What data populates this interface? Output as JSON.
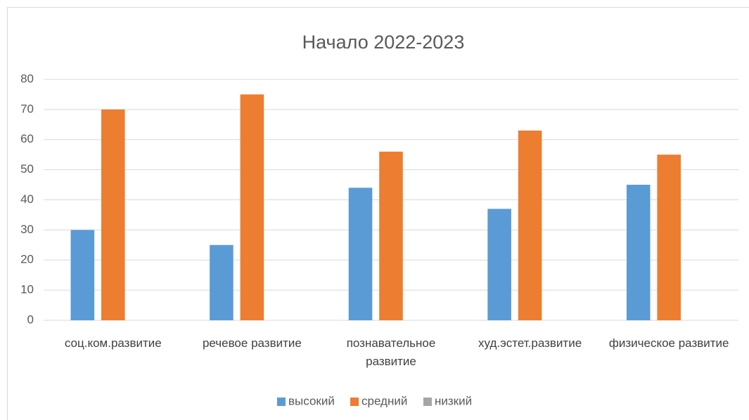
{
  "chart_data": {
    "type": "bar",
    "title": "Начало 2022-2023",
    "categories": [
      "соц.ком.развитие",
      "речевое развитие",
      "познавательное развитие",
      "худ.эстет.развитие",
      "физическое развитие"
    ],
    "series": [
      {
        "name": "высокий",
        "color": "#5b9bd5",
        "values": [
          30,
          25,
          44,
          37,
          45
        ]
      },
      {
        "name": "средний",
        "color": "#ed7d31",
        "values": [
          70,
          75,
          56,
          63,
          55
        ]
      },
      {
        "name": "низкий",
        "color": "#a5a5a5",
        "values": [
          0,
          0,
          0,
          0,
          0
        ]
      }
    ],
    "ylim": [
      0,
      80
    ],
    "yticks": [
      0,
      10,
      20,
      30,
      40,
      50,
      60,
      70,
      80
    ],
    "grid": true,
    "legend": "bottom"
  }
}
